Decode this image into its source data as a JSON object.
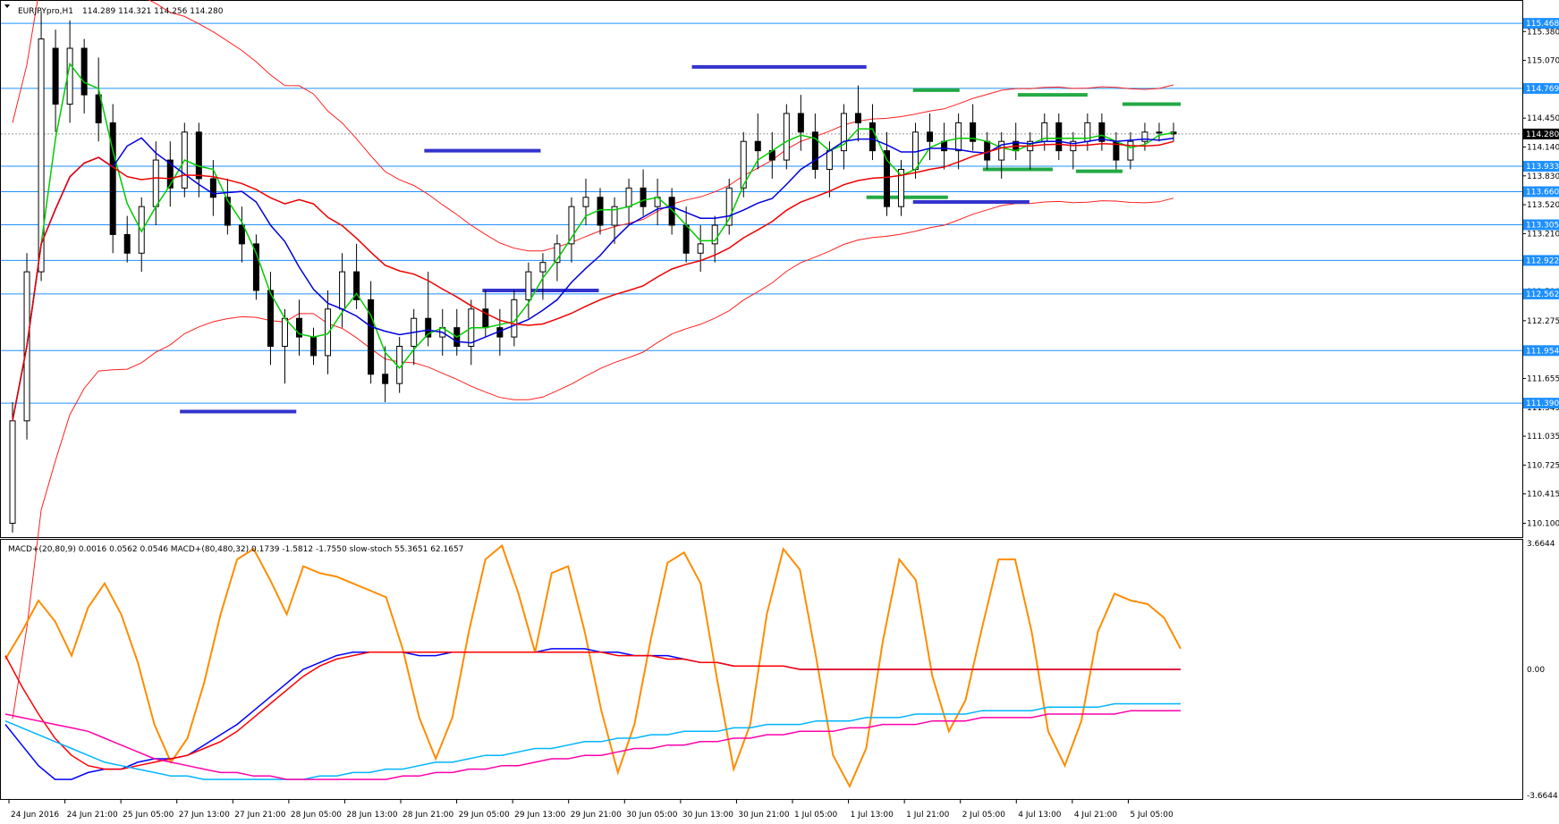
{
  "window": {
    "symbol_header": "EURJPYpro,H1",
    "quote": "114.289 114.321 114.256 114.280",
    "indicator_header": "MACD+(20,80,9) 0.0016 0.0562 0.0546   MACD+(80,480,32) 0.1739 -1.5812 -1.7550   slow-stoch 55.3651 62.1657"
  },
  "chart_data": [
    {
      "type": "candlestick",
      "panel": "price",
      "ylim": [
        109.98,
        115.68
      ],
      "price_axis_ticks": [
        "115.380",
        "115.070",
        "114.760",
        "114.450",
        "114.140",
        "113.830",
        "113.520",
        "113.210",
        "112.900",
        "112.590",
        "112.275",
        "111.965",
        "111.655",
        "111.345",
        "111.035",
        "110.725",
        "110.415",
        "110.100"
      ],
      "current_price": "114.280",
      "horizontal_levels": [
        "115.468",
        "114.769",
        "113.933",
        "113.660",
        "113.305",
        "112.922",
        "112.562",
        "111.954",
        "111.390"
      ],
      "time_labels": [
        "24 Jun 2016",
        "24 Jun 21:00",
        "25 Jun 05:00",
        "27 Jun 13:00",
        "27 Jun 21:00",
        "28 Jun 05:00",
        "28 Jun 13:00",
        "28 Jun 21:00",
        "29 Jun 05:00",
        "29 Jun 13:00",
        "29 Jun 21:00",
        "30 Jun 05:00",
        "30 Jun 13:00",
        "30 Jun 21:00",
        "1 Jul 05:00",
        "1 Jul 13:00",
        "1 Jul 21:00",
        "2 Jul 05:00",
        "4 Jul 13:00",
        "4 Jul 21:00",
        "5 Jul 05:00"
      ],
      "candles": [
        [
          110.1,
          111.4,
          110.0,
          111.2
        ],
        [
          111.2,
          113.0,
          111.0,
          112.8
        ],
        [
          112.8,
          115.6,
          112.7,
          115.3
        ],
        [
          115.2,
          115.4,
          114.3,
          114.6
        ],
        [
          114.6,
          115.5,
          114.4,
          115.2
        ],
        [
          115.2,
          115.3,
          114.5,
          114.7
        ],
        [
          114.7,
          115.1,
          114.2,
          114.4
        ],
        [
          114.4,
          114.6,
          113.0,
          113.2
        ],
        [
          113.2,
          113.4,
          112.9,
          113.0
        ],
        [
          113.0,
          113.6,
          112.8,
          113.5
        ],
        [
          113.5,
          114.2,
          113.3,
          114.0
        ],
        [
          114.0,
          114.2,
          113.5,
          113.7
        ],
        [
          113.7,
          114.4,
          113.6,
          114.3
        ],
        [
          114.3,
          114.4,
          113.6,
          113.8
        ],
        [
          113.8,
          114.0,
          113.4,
          113.6
        ],
        [
          113.6,
          113.8,
          113.2,
          113.3
        ],
        [
          113.3,
          113.5,
          112.9,
          113.1
        ],
        [
          113.1,
          113.2,
          112.5,
          112.6
        ],
        [
          112.6,
          112.8,
          111.8,
          112.0
        ],
        [
          112.0,
          112.4,
          111.6,
          112.3
        ],
        [
          112.3,
          112.5,
          111.9,
          112.1
        ],
        [
          112.1,
          112.2,
          111.8,
          111.9
        ],
        [
          111.9,
          112.6,
          111.7,
          112.4
        ],
        [
          112.4,
          113.0,
          112.2,
          112.8
        ],
        [
          112.8,
          113.1,
          112.4,
          112.5
        ],
        [
          112.5,
          112.7,
          111.6,
          111.7
        ],
        [
          111.7,
          112.0,
          111.4,
          111.6
        ],
        [
          111.6,
          112.1,
          111.5,
          112.0
        ],
        [
          112.0,
          112.4,
          111.8,
          112.3
        ],
        [
          112.3,
          112.8,
          112.0,
          112.1
        ],
        [
          112.1,
          112.4,
          111.9,
          112.2
        ],
        [
          112.2,
          112.4,
          111.9,
          112.0
        ],
        [
          112.0,
          112.5,
          111.8,
          112.4
        ],
        [
          112.4,
          112.6,
          112.1,
          112.2
        ],
        [
          112.2,
          112.4,
          111.9,
          112.1
        ],
        [
          112.1,
          112.6,
          112.0,
          112.5
        ],
        [
          112.5,
          112.9,
          112.3,
          112.8
        ],
        [
          112.8,
          113.0,
          112.5,
          112.9
        ],
        [
          112.9,
          113.2,
          112.7,
          113.1
        ],
        [
          113.1,
          113.6,
          112.9,
          113.5
        ],
        [
          113.5,
          113.8,
          113.3,
          113.6
        ],
        [
          113.6,
          113.7,
          113.2,
          113.3
        ],
        [
          113.3,
          113.6,
          113.1,
          113.5
        ],
        [
          113.5,
          113.8,
          113.3,
          113.7
        ],
        [
          113.7,
          113.9,
          113.4,
          113.5
        ],
        [
          113.5,
          113.8,
          113.3,
          113.6
        ],
        [
          113.6,
          113.7,
          113.2,
          113.3
        ],
        [
          113.3,
          113.5,
          112.9,
          113.0
        ],
        [
          113.0,
          113.3,
          112.8,
          113.1
        ],
        [
          113.1,
          113.4,
          112.9,
          113.3
        ],
        [
          113.3,
          113.8,
          113.2,
          113.7
        ],
        [
          113.7,
          114.3,
          113.6,
          114.2
        ],
        [
          114.2,
          114.5,
          113.9,
          114.1
        ],
        [
          114.1,
          114.3,
          113.8,
          114.0
        ],
        [
          114.0,
          114.6,
          113.9,
          114.5
        ],
        [
          114.5,
          114.7,
          114.1,
          114.3
        ],
        [
          114.3,
          114.5,
          113.8,
          113.9
        ],
        [
          113.9,
          114.2,
          113.6,
          114.1
        ],
        [
          114.1,
          114.6,
          113.9,
          114.5
        ],
        [
          114.5,
          114.8,
          114.2,
          114.4
        ],
        [
          114.4,
          114.6,
          114.0,
          114.1
        ],
        [
          114.1,
          114.3,
          113.4,
          113.5
        ],
        [
          113.5,
          114.0,
          113.4,
          113.9
        ],
        [
          113.9,
          114.4,
          113.8,
          114.3
        ],
        [
          114.3,
          114.5,
          114.0,
          114.2
        ],
        [
          114.2,
          114.4,
          113.9,
          114.1
        ],
        [
          114.1,
          114.5,
          113.9,
          114.4
        ],
        [
          114.4,
          114.6,
          114.1,
          114.2
        ],
        [
          114.2,
          114.3,
          113.9,
          114.0
        ],
        [
          114.0,
          114.3,
          113.8,
          114.2
        ],
        [
          114.2,
          114.4,
          114.0,
          114.1
        ],
        [
          114.1,
          114.3,
          113.9,
          114.2
        ],
        [
          114.2,
          114.5,
          114.1,
          114.4
        ],
        [
          114.4,
          114.5,
          114.0,
          114.1
        ],
        [
          114.1,
          114.3,
          113.9,
          114.2
        ],
        [
          114.2,
          114.5,
          114.1,
          114.4
        ],
        [
          114.4,
          114.5,
          114.1,
          114.2
        ],
        [
          114.2,
          114.3,
          113.9,
          114.0
        ],
        [
          114.0,
          114.3,
          113.9,
          114.2
        ],
        [
          114.2,
          114.4,
          114.1,
          114.3
        ],
        [
          114.3,
          114.4,
          114.2,
          114.3
        ],
        [
          114.3,
          114.4,
          114.2,
          114.28
        ]
      ]
    },
    {
      "type": "line",
      "panel": "indicator",
      "ylim": [
        -3.6644,
        3.6644
      ],
      "axis_ticks": [
        "3.6644",
        "0.00",
        "-3.6644"
      ],
      "series": [
        {
          "color": "#ff8c00",
          "values": [
            0.3,
            1.1,
            2.0,
            1.4,
            0.4,
            1.8,
            2.5,
            1.6,
            0.2,
            -1.6,
            -2.7,
            -2.0,
            -0.4,
            1.6,
            3.2,
            3.5,
            2.6,
            1.6,
            3.0,
            2.8,
            2.7,
            2.5,
            2.3,
            2.1,
            0.6,
            -1.4,
            -2.6,
            -1.4,
            1.1,
            3.2,
            3.6,
            2.2,
            0.5,
            2.8,
            3.0,
            1.1,
            -1.2,
            -3.0,
            -1.6,
            0.9,
            3.1,
            3.4,
            2.5,
            -0.3,
            -2.9,
            -1.6,
            1.6,
            3.5,
            2.9,
            0.3,
            -2.5,
            -3.4,
            -2.3,
            0.8,
            3.2,
            2.6,
            -0.2,
            -1.8,
            -0.9,
            1.2,
            3.2,
            3.2,
            1.1,
            -1.8,
            -2.8,
            -1.5,
            1.1,
            2.2,
            2.0,
            1.9,
            1.5,
            0.6
          ]
        },
        {
          "color": "#0000ff",
          "values": [
            -1.6,
            -2.2,
            -2.8,
            -3.2,
            -3.2,
            -3.0,
            -2.9,
            -2.9,
            -2.7,
            -2.6,
            -2.6,
            -2.5,
            -2.2,
            -1.9,
            -1.6,
            -1.2,
            -0.8,
            -0.4,
            0.0,
            0.2,
            0.4,
            0.5,
            0.5,
            0.5,
            0.5,
            0.4,
            0.4,
            0.5,
            0.5,
            0.5,
            0.5,
            0.5,
            0.5,
            0.6,
            0.6,
            0.6,
            0.5,
            0.5,
            0.4,
            0.4,
            0.4,
            0.3,
            0.2,
            0.2,
            0.1,
            0.1,
            0.1,
            0.1,
            0.0,
            0.0,
            0.0,
            0.0,
            0.0,
            0.0,
            0.0,
            0.0,
            0.0,
            0.0,
            0.0,
            0.0,
            0.0,
            0.0,
            0.0,
            0.0,
            0.0,
            0.0,
            0.0,
            0.0,
            0.0,
            0.0,
            0.0,
            0.0
          ]
        },
        {
          "color": "#ff0000",
          "values": [
            0.4,
            -0.5,
            -1.3,
            -2.0,
            -2.5,
            -2.8,
            -2.9,
            -2.9,
            -2.8,
            -2.7,
            -2.6,
            -2.5,
            -2.3,
            -2.1,
            -1.8,
            -1.4,
            -1.0,
            -0.6,
            -0.2,
            0.1,
            0.3,
            0.4,
            0.5,
            0.5,
            0.5,
            0.5,
            0.5,
            0.5,
            0.5,
            0.5,
            0.5,
            0.5,
            0.5,
            0.5,
            0.5,
            0.5,
            0.5,
            0.4,
            0.4,
            0.4,
            0.3,
            0.3,
            0.2,
            0.2,
            0.1,
            0.1,
            0.1,
            0.1,
            0.0,
            0.0,
            0.0,
            0.0,
            0.0,
            0.0,
            0.0,
            0.0,
            0.0,
            0.0,
            0.0,
            0.0,
            0.0,
            0.0,
            0.0,
            0.0,
            0.0,
            0.0,
            0.0,
            0.0,
            0.0,
            0.0,
            0.0,
            0.0
          ]
        },
        {
          "color": "#00b4ff",
          "values": [
            -1.5,
            -1.7,
            -1.9,
            -2.1,
            -2.3,
            -2.5,
            -2.7,
            -2.8,
            -2.9,
            -3.0,
            -3.1,
            -3.1,
            -3.2,
            -3.2,
            -3.2,
            -3.2,
            -3.2,
            -3.2,
            -3.2,
            -3.1,
            -3.1,
            -3.0,
            -3.0,
            -2.9,
            -2.9,
            -2.8,
            -2.7,
            -2.7,
            -2.6,
            -2.5,
            -2.5,
            -2.4,
            -2.3,
            -2.3,
            -2.2,
            -2.1,
            -2.1,
            -2.0,
            -2.0,
            -1.9,
            -1.9,
            -1.8,
            -1.8,
            -1.8,
            -1.7,
            -1.7,
            -1.6,
            -1.6,
            -1.6,
            -1.5,
            -1.5,
            -1.5,
            -1.4,
            -1.4,
            -1.4,
            -1.3,
            -1.3,
            -1.3,
            -1.3,
            -1.2,
            -1.2,
            -1.2,
            -1.2,
            -1.1,
            -1.1,
            -1.1,
            -1.1,
            -1.0,
            -1.0,
            -1.0,
            -1.0,
            -1.0
          ]
        },
        {
          "color": "#ff00aa",
          "values": [
            -1.3,
            -1.4,
            -1.5,
            -1.6,
            -1.7,
            -1.8,
            -2.0,
            -2.2,
            -2.4,
            -2.6,
            -2.7,
            -2.8,
            -2.9,
            -3.0,
            -3.0,
            -3.1,
            -3.1,
            -3.2,
            -3.2,
            -3.2,
            -3.2,
            -3.2,
            -3.2,
            -3.2,
            -3.1,
            -3.1,
            -3.0,
            -3.0,
            -2.9,
            -2.9,
            -2.8,
            -2.8,
            -2.7,
            -2.6,
            -2.6,
            -2.5,
            -2.5,
            -2.4,
            -2.3,
            -2.3,
            -2.2,
            -2.2,
            -2.1,
            -2.1,
            -2.0,
            -2.0,
            -1.9,
            -1.9,
            -1.8,
            -1.8,
            -1.8,
            -1.7,
            -1.7,
            -1.6,
            -1.6,
            -1.6,
            -1.5,
            -1.5,
            -1.5,
            -1.4,
            -1.4,
            -1.4,
            -1.4,
            -1.3,
            -1.3,
            -1.3,
            -1.3,
            -1.3,
            -1.2,
            -1.2,
            -1.2,
            -1.2
          ]
        }
      ]
    }
  ],
  "colors": {
    "level_line": "#1e90ff",
    "level_tag": "#1e90ff",
    "ma_green": "#00cc00",
    "ma_blue": "#0000dd",
    "ma_red": "#ee0000",
    "band_red": "#ff2020",
    "zone_blue": "#3333cc",
    "zone_green": "#22aa44"
  }
}
